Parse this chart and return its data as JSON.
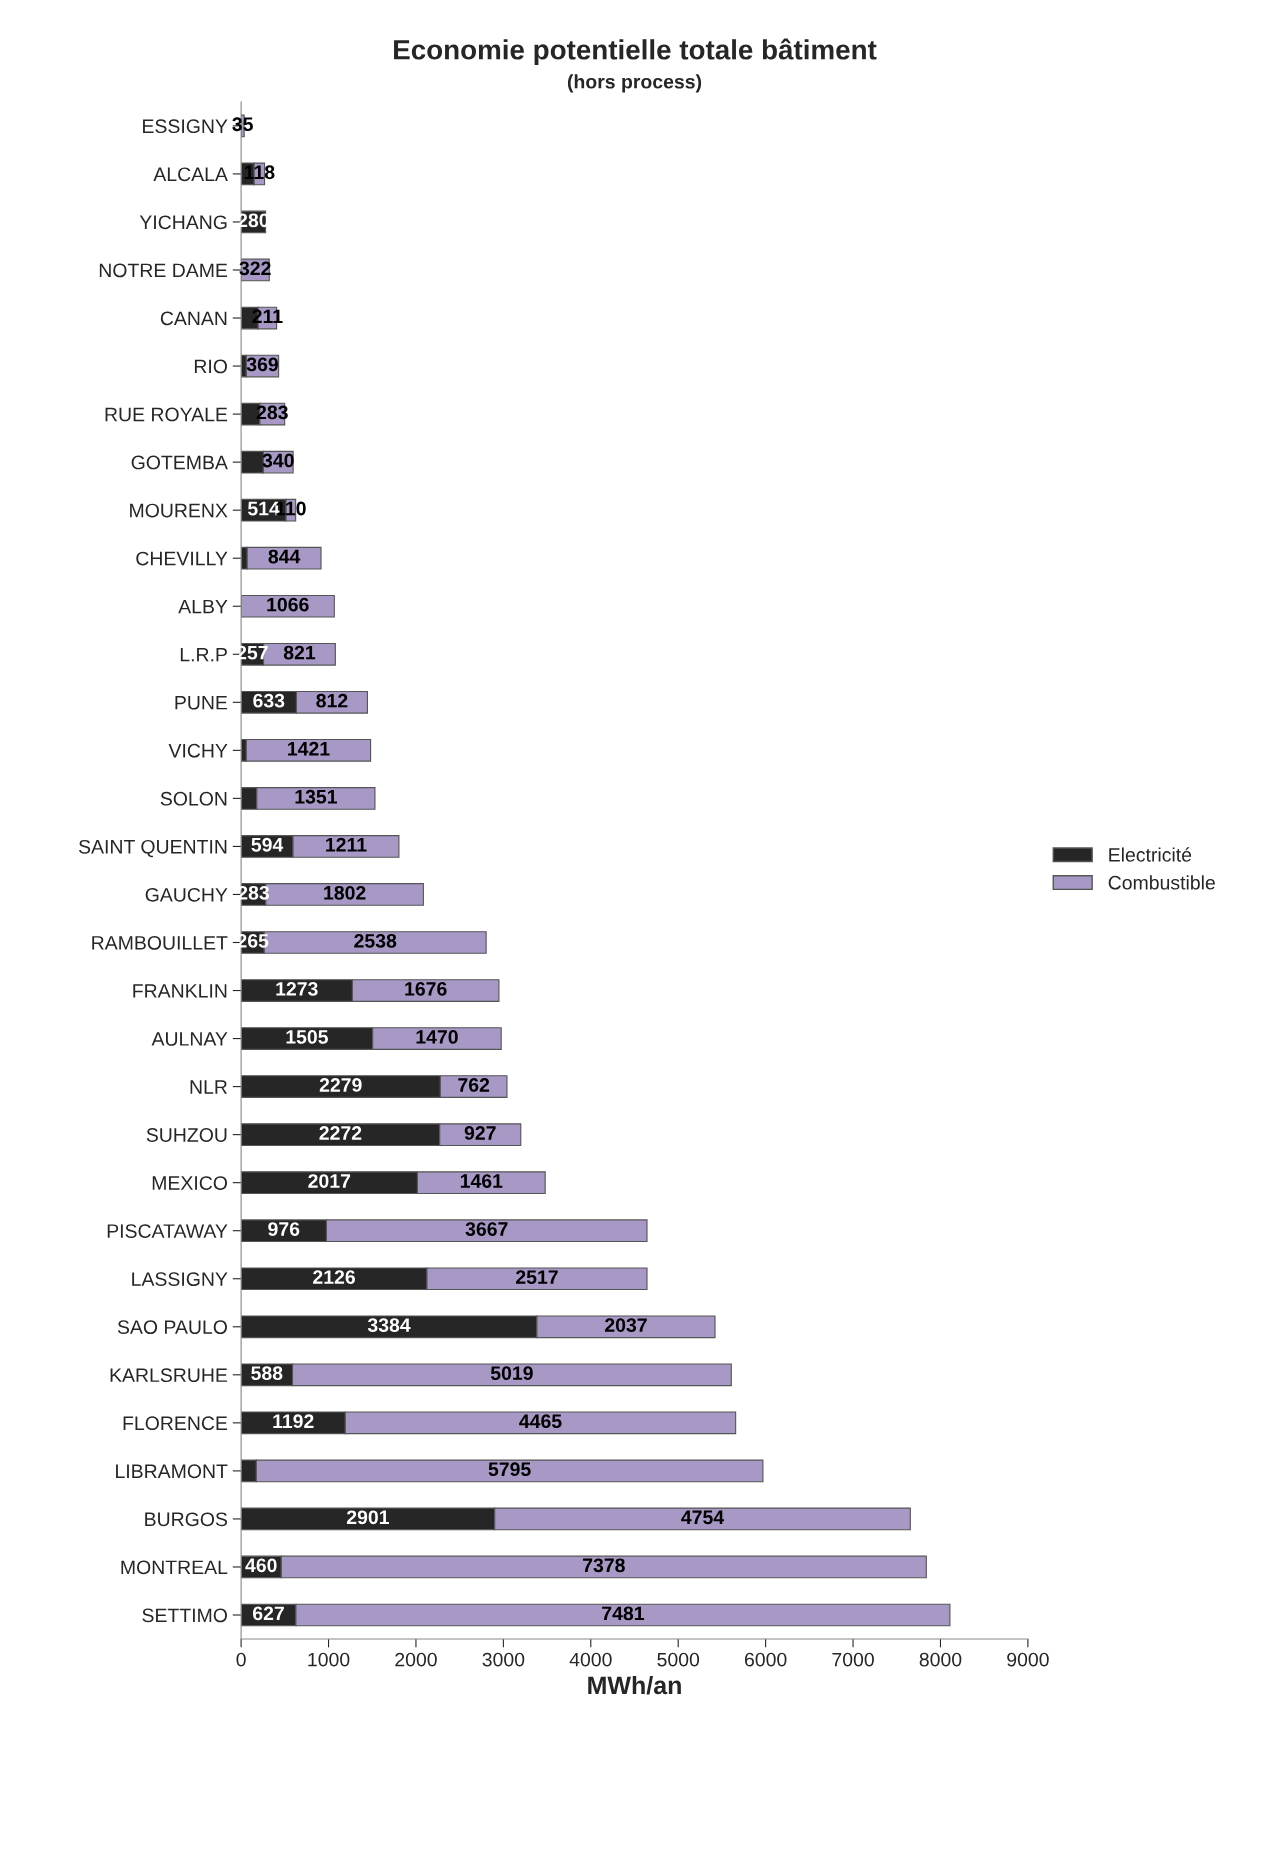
{
  "chart_data": {
    "type": "bar",
    "orientation": "horizontal",
    "stacked": true,
    "title": "Economie potentielle totale bâtiment",
    "subtitle": "(hors process)",
    "xlabel": "MWh/an",
    "categories": [
      "ESSIGNY",
      "ALCALA",
      "YICHANG",
      "NOTRE DAME",
      "CANAN",
      "RIO",
      "RUE ROYALE",
      "GOTEMBA",
      "MOURENX",
      "CHEVILLY",
      "ALBY",
      "L.R.P",
      "PUNE",
      "VICHY",
      "SOLON",
      "SAINT QUENTIN",
      "GAUCHY",
      "RAMBOUILLET",
      "FRANKLIN",
      "AULNAY",
      "NLR",
      "SUHZOU",
      "MEXICO",
      "PISCATAWAY",
      "LASSIGNY",
      "SAO PAULO",
      "KARLSRUHE",
      "FLORENCE",
      "LIBRAMONT",
      "BURGOS",
      "MONTREAL",
      "SETTIMO"
    ],
    "series": [
      {
        "name": "Electricité",
        "color": "#262626",
        "values": [
          null,
          150,
          280,
          null,
          195,
          60,
          215,
          255,
          514,
          70,
          null,
          257,
          633,
          60,
          180,
          594,
          283,
          265,
          1273,
          1505,
          2279,
          2272,
          2017,
          976,
          2126,
          3384,
          588,
          1192,
          174,
          2901,
          460,
          627
        ],
        "value_labels": [
          null,
          null,
          "280",
          null,
          null,
          null,
          null,
          null,
          "514",
          null,
          null,
          "257",
          "633",
          null,
          null,
          "594",
          "283",
          "265",
          "1273",
          "1505",
          "2279",
          "2272",
          "2017",
          "976",
          "2126",
          "3384",
          "588",
          "1192",
          null,
          "2901",
          "460",
          "627"
        ]
      },
      {
        "name": "Combustible",
        "color": "#a798c5",
        "values": [
          35,
          118,
          null,
          322,
          211,
          369,
          283,
          340,
          110,
          844,
          1066,
          821,
          812,
          1421,
          1351,
          1211,
          1802,
          2538,
          1676,
          1470,
          762,
          927,
          1461,
          3667,
          2517,
          2037,
          5019,
          4465,
          5795,
          4754,
          7378,
          7481
        ],
        "value_labels": [
          "35",
          "118",
          null,
          "322",
          "211",
          "369",
          "283",
          "340",
          "110",
          "844",
          "1066",
          "821",
          "812",
          "1421",
          "1351",
          "1211",
          "1802",
          "2538",
          "1676",
          "1470",
          "762",
          "927",
          "1461",
          "3667",
          "2517",
          "2037",
          "5019",
          "4465",
          "5795",
          "4754",
          "7378",
          "7481"
        ]
      }
    ],
    "xlim": [
      0,
      9000
    ],
    "xticks": [
      0,
      1000,
      2000,
      3000,
      4000,
      5000,
      6000,
      7000,
      8000,
      9000
    ],
    "grid": false,
    "legend": "right"
  }
}
